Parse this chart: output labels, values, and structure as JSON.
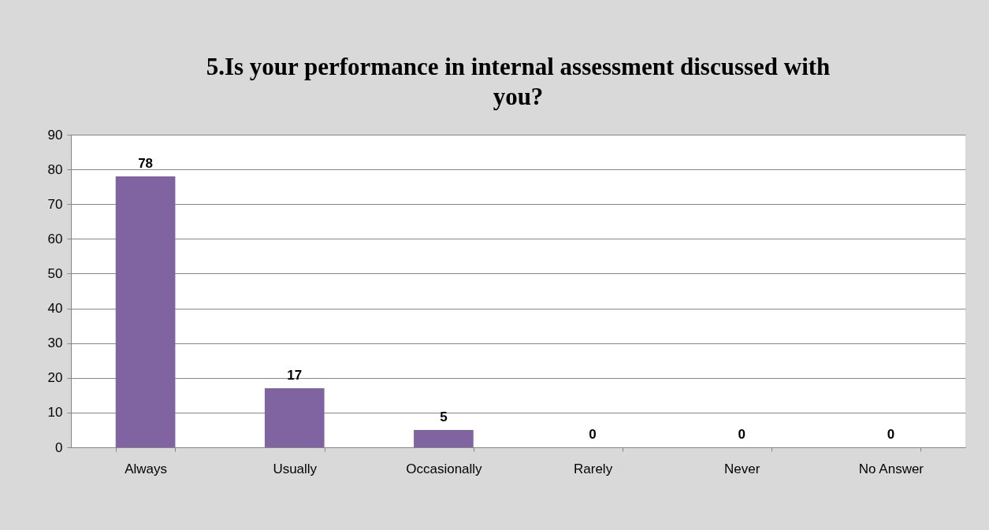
{
  "chart_data": {
    "type": "bar",
    "title": "5.Is your performance in internal assessment discussed with you?",
    "categories": [
      "Always",
      "Usually",
      "Occasionally",
      "Rarely",
      "Never",
      "No Answer"
    ],
    "values": [
      78,
      17,
      5,
      0,
      0,
      0
    ],
    "color": "#8064a2",
    "ylim": [
      0,
      90
    ],
    "yticks": [
      0,
      10,
      20,
      30,
      40,
      50,
      60,
      70,
      80,
      90
    ],
    "grid": "y",
    "data_labels": true
  }
}
